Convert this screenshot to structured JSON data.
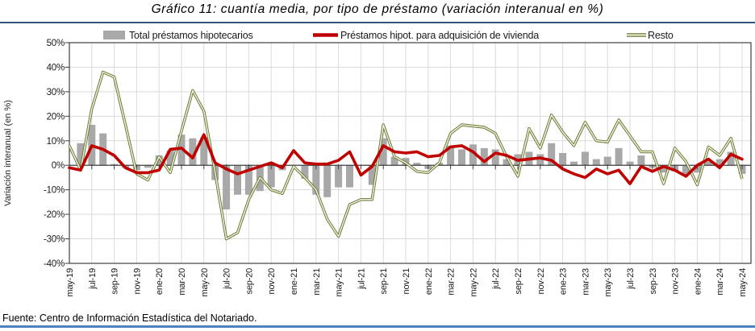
{
  "header": {
    "title": "Gráfico 11: cuantía media, por tipo de préstamo (variación interanual en %)"
  },
  "footer": {
    "source": "Fuente: Centro de Información Estadística del Notariado."
  },
  "legend": [
    {
      "label": "Total préstamos hipotecarios",
      "type": "bar",
      "color": "#A8A8A8"
    },
    {
      "label": "Préstamos hipot. para adquisición de vivienda",
      "type": "line",
      "color": "#C00000"
    },
    {
      "label": "Resto",
      "type": "line-outlined",
      "color": "#67762F",
      "inner_color": "#EFF0DF"
    }
  ],
  "colors": {
    "rule_top": "#31537D",
    "rule_bottom": "#4F81BD",
    "grid": "#DADADA",
    "axis": "#404040",
    "bar_gray": "#A8A8A8",
    "red": "#C00000",
    "olive": "#67762F",
    "olive_inner": "#EFF0DF"
  },
  "chart_data": {
    "type": "bar",
    "combo": "bar+line",
    "title": "Gráfico 11: cuantía media, por tipo de préstamo (variación interanual en %)",
    "xlabel": "",
    "ylabel": "Variación interanual (en %)",
    "ylim": [
      -40,
      50
    ],
    "ytick_step": 10,
    "ytick_suffix": "%",
    "grid": true,
    "legend_position": "top",
    "xtick_every": 2,
    "x": [
      "may-19",
      "jun-19",
      "jul-19",
      "ago-19",
      "sep-19",
      "oct-19",
      "nov-19",
      "dic-19",
      "ene-20",
      "feb-20",
      "mar-20",
      "abr-20",
      "may-20",
      "jun-20",
      "jul-20",
      "ago-20",
      "sep-20",
      "oct-20",
      "nov-20",
      "dic-20",
      "ene-21",
      "feb-21",
      "mar-21",
      "abr-21",
      "may-21",
      "jun-21",
      "jul-21",
      "ago-21",
      "sep-21",
      "oct-21",
      "nov-21",
      "dic-21",
      "ene-22",
      "feb-22",
      "mar-22",
      "abr-22",
      "may-22",
      "jun-22",
      "jul-22",
      "ago-22",
      "sep-22",
      "oct-22",
      "nov-22",
      "dic-22",
      "ene-23",
      "feb-23",
      "mar-23",
      "abr-23",
      "may-23",
      "jun-23",
      "jul-23",
      "ago-23",
      "sep-23",
      "oct-23",
      "nov-23",
      "dic-23",
      "ene-24",
      "feb-24",
      "mar-24",
      "abr-24",
      "may-24"
    ],
    "series": [
      {
        "name": "Total préstamos hipotecarios",
        "type": "bar",
        "color": "#A8A8A8",
        "values": [
          0,
          9,
          16.5,
          13,
          0.5,
          -1,
          -2,
          -1,
          4,
          6,
          12.5,
          11,
          11.5,
          -6,
          -18,
          -12,
          -12,
          -10.5,
          -9,
          -2,
          0,
          -5.5,
          -12,
          -13,
          -9,
          -9,
          0,
          -8,
          11,
          3.5,
          3,
          1,
          -1.5,
          1,
          8,
          6.5,
          8.5,
          7,
          6.5,
          2.5,
          4.5,
          5.5,
          4.5,
          9,
          5,
          1.5,
          5.5,
          2.5,
          3.5,
          7,
          1.5,
          4,
          -1,
          -3,
          -2.5,
          -4,
          -3,
          1.5,
          2.5,
          5.5,
          -3.5
        ]
      },
      {
        "name": "Préstamos hipot. para adquisición de vivienda",
        "type": "line",
        "color": "#C00000",
        "values": [
          -1,
          -2,
          8,
          6.5,
          4,
          -1,
          -3,
          -3,
          -2,
          6.5,
          7,
          3,
          12.5,
          1,
          -1.5,
          -3.5,
          -2,
          -0.5,
          1,
          -1,
          6,
          1,
          0.5,
          0.5,
          2,
          5.5,
          -4,
          -0.5,
          8,
          5.5,
          5,
          5.5,
          3.5,
          4,
          7.5,
          8,
          5.5,
          1.5,
          5,
          4,
          2,
          2.5,
          3,
          2,
          -1.5,
          -3.5,
          -5,
          -1.5,
          -3.5,
          -2,
          -7.5,
          -0.5,
          -2.5,
          -0.5,
          -2,
          -4.5,
          0,
          2.5,
          -1,
          4.5,
          2.5
        ]
      },
      {
        "name": "Resto",
        "type": "line-outlined",
        "color": "#67762F",
        "inner_color": "#EFF0DF",
        "values": [
          8,
          -2,
          23,
          38,
          36,
          16.5,
          -3.5,
          -6,
          3.5,
          -3,
          14,
          30.5,
          22,
          -3,
          -30,
          -27.5,
          -14,
          -5,
          -10,
          -11.5,
          -0.5,
          -5,
          -10,
          -22,
          -29,
          -16,
          -14,
          -14,
          16.5,
          3.5,
          1,
          -2.5,
          -3,
          1,
          13,
          16.5,
          16,
          15.5,
          13,
          3.5,
          -4.5,
          15,
          7,
          20.5,
          13.5,
          8,
          17.5,
          10,
          9.5,
          18.5,
          12,
          5.5,
          5.5,
          -7.5,
          7,
          1.5,
          -8,
          7.5,
          4,
          11,
          -5.5
        ]
      }
    ]
  }
}
